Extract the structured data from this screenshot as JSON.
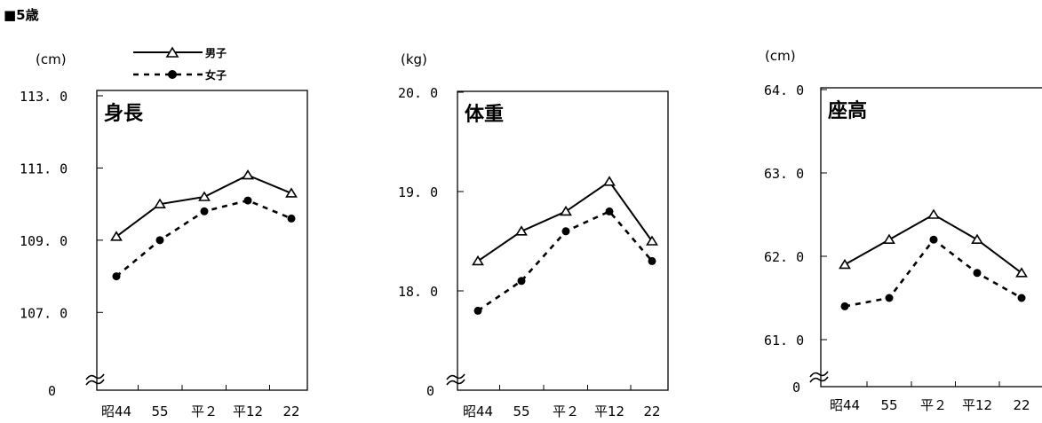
{
  "section_title": "■5歳",
  "legend": {
    "male_label": "男子",
    "female_label": "女子"
  },
  "colors": {
    "line": "#000000",
    "background": "#ffffff"
  },
  "x_labels": [
    "昭44",
    "55",
    "平２",
    "平12",
    "22"
  ],
  "chart_data": [
    {
      "type": "line",
      "title": "身長",
      "unit": "(cm)",
      "zero_label": "0",
      "ylim": [
        106.0,
        113.0
      ],
      "yticks": [
        113.0,
        111.0,
        109.0,
        107.0
      ],
      "ytick_labels": [
        "113. 0",
        "111. 0",
        "109. 0",
        "107. 0"
      ],
      "categories": [
        "昭44",
        "55",
        "平２",
        "平12",
        "22"
      ],
      "series": [
        {
          "name": "男子",
          "marker": "triangle",
          "values": [
            109.1,
            110.0,
            110.2,
            110.8,
            110.3
          ]
        },
        {
          "name": "女子",
          "marker": "circle",
          "values": [
            108.0,
            109.0,
            109.8,
            110.1,
            109.6
          ]
        }
      ]
    },
    {
      "type": "line",
      "title": "体重",
      "unit": "(kg)",
      "zero_label": "0",
      "ylim": [
        17.0,
        20.0
      ],
      "yticks": [
        20.0,
        19.0,
        18.0
      ],
      "ytick_labels": [
        "20. 0",
        "19. 0",
        "18. 0"
      ],
      "categories": [
        "昭44",
        "55",
        "平２",
        "平12",
        "22"
      ],
      "series": [
        {
          "name": "男子",
          "marker": "triangle",
          "values": [
            18.3,
            18.6,
            18.8,
            19.1,
            18.5
          ]
        },
        {
          "name": "女子",
          "marker": "circle",
          "values": [
            17.8,
            18.1,
            18.6,
            18.8,
            18.3
          ]
        }
      ]
    },
    {
      "type": "line",
      "title": "座高",
      "unit": "(cm)",
      "zero_label": "0",
      "ylim": [
        60.5,
        64.0
      ],
      "yticks": [
        64.0,
        63.0,
        62.0,
        61.0
      ],
      "ytick_labels": [
        "64. 0",
        "63. 0",
        "62. 0",
        "61. 0"
      ],
      "categories": [
        "昭44",
        "55",
        "平２",
        "平12",
        "22"
      ],
      "series": [
        {
          "name": "男子",
          "marker": "triangle",
          "values": [
            61.9,
            62.2,
            62.5,
            62.2,
            61.8
          ]
        },
        {
          "name": "女子",
          "marker": "circle",
          "values": [
            61.4,
            61.5,
            62.2,
            61.8,
            61.5
          ]
        }
      ]
    }
  ]
}
